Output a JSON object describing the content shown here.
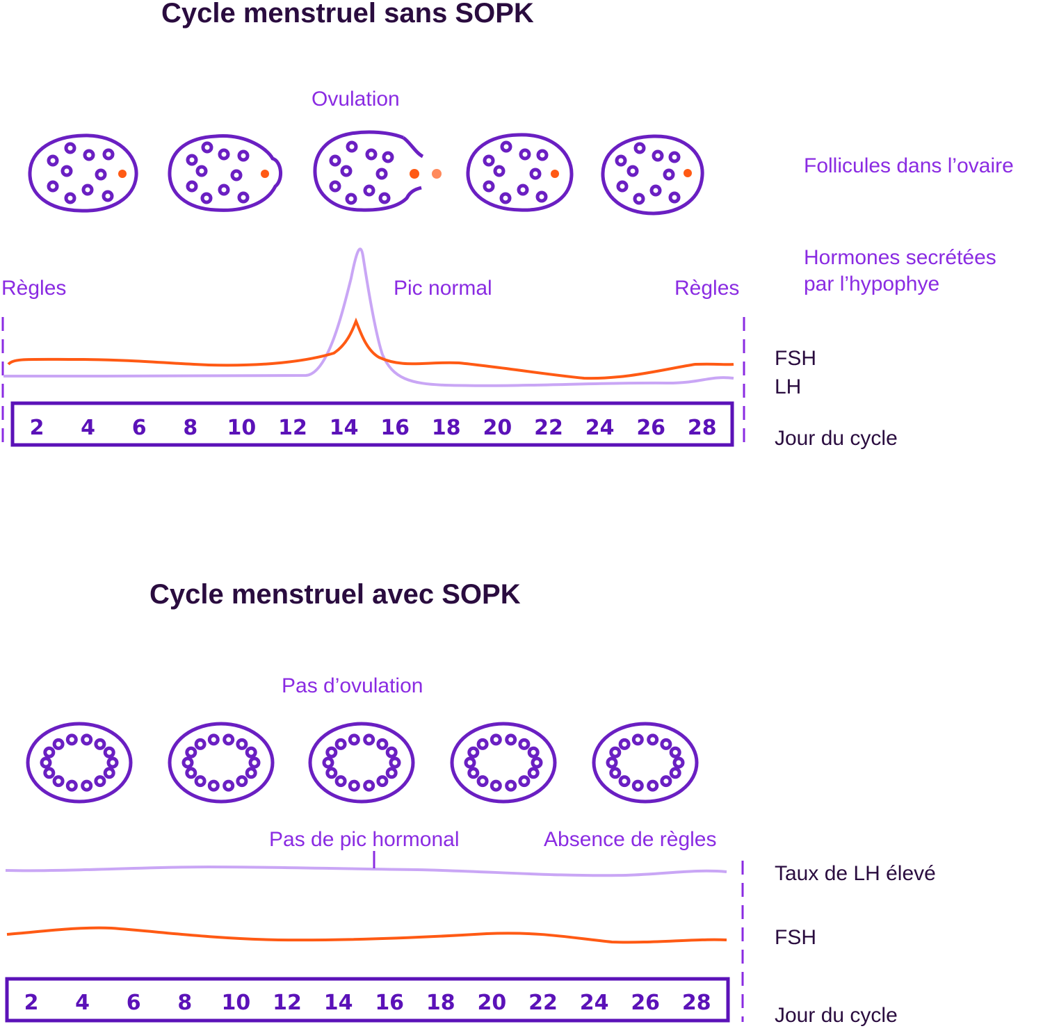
{
  "colors": {
    "title": "#2a0c3f",
    "label_violet": "#8a2be2",
    "ovary_stroke": "#6a1fc2",
    "fsh": "#ff5a14",
    "lh": "#c9a6f5",
    "dashed": "#8a2be2"
  },
  "top": {
    "title": "Cycle menstruel sans SOPK",
    "ovulation": "Ovulation",
    "follicles_label": "Follicules dans l’ovaire",
    "hormones_line1": "Hormones secrétées",
    "hormones_line2": "par l’hypophye",
    "regles_left": "Règles",
    "regles_right": "Règles",
    "pic": "Pic normal",
    "fsh": "FSH",
    "lh": "LH",
    "jour": "Jour du cycle"
  },
  "bottom": {
    "title": "Cycle menstruel avec SOPK",
    "no_ovulation": "Pas d’ovulation",
    "no_pic": "Pas de pic hormonal",
    "absence": "Absence de règles",
    "lh_high": "Taux de LH élevé",
    "fsh": "FSH",
    "jour": "Jour du cycle"
  },
  "days": [
    "2",
    "4",
    "6",
    "8",
    "10",
    "12",
    "14",
    "16",
    "18",
    "20",
    "22",
    "24",
    "26",
    "28"
  ]
}
